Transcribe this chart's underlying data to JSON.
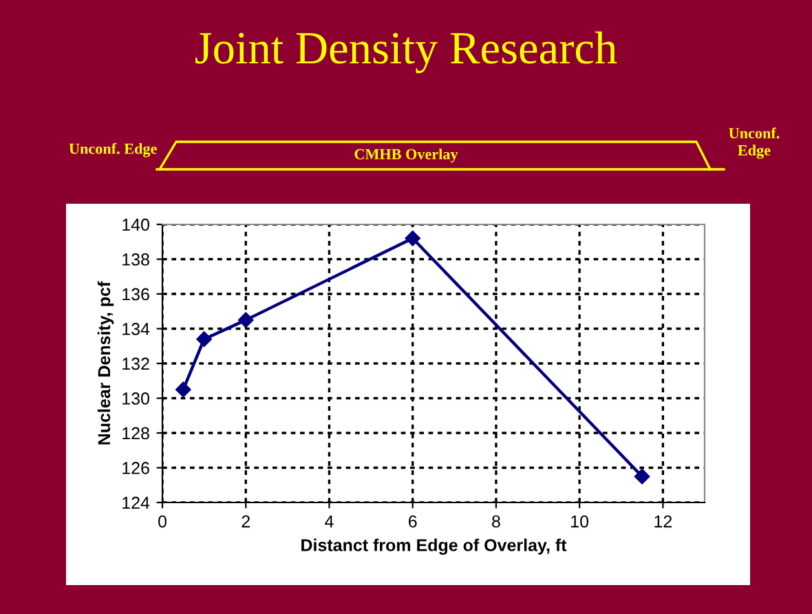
{
  "chart_data": {
    "type": "line",
    "title": "Joint Density Research",
    "annotations": [
      "Unconf. Edge",
      "CMHB Overlay",
      "Unconf.\nEdge"
    ],
    "xlabel": "Distanct from Edge of Overlay, ft",
    "ylabel": "Nuclear Density, pcf",
    "x": [
      0.5,
      1,
      2,
      6,
      11.5
    ],
    "series": [
      {
        "color": "#000080",
        "values": [
          130.5,
          133.4,
          134.5,
          139.2,
          125.5
        ]
      }
    ],
    "xlim": [
      0,
      13
    ],
    "ylim": [
      124,
      140
    ],
    "xticks": [
      0,
      2,
      4,
      6,
      8,
      10,
      12
    ],
    "yticks": [
      124,
      126,
      128,
      130,
      132,
      134,
      136,
      138,
      140
    ],
    "grid": true,
    "marker": "diamond",
    "line_style": "solid",
    "legend": false
  }
}
